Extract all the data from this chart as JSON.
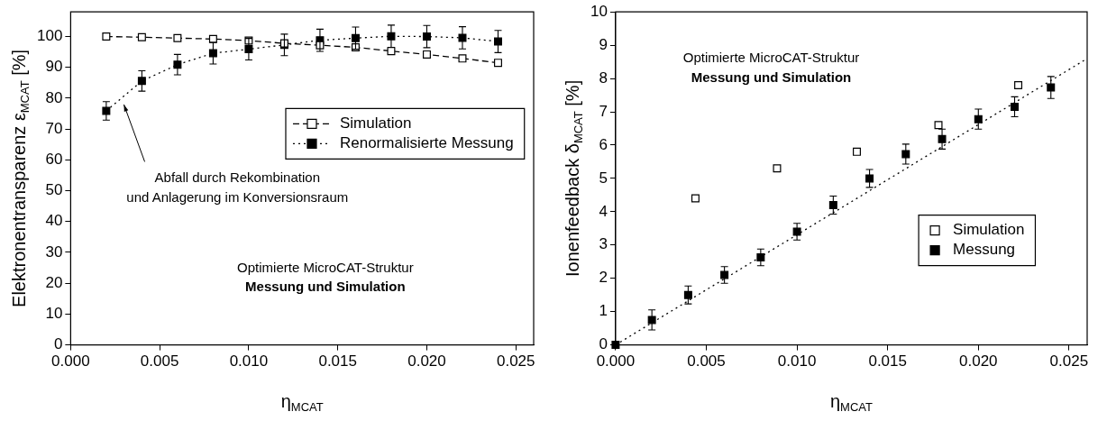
{
  "chart_data": [
    {
      "type": "line",
      "xlabel": "η$_{MCAT}$",
      "ylabel": "Elektronentransparenz ε$_{MCAT}$ [%]",
      "x": [
        0.002,
        0.004,
        0.006,
        0.008,
        0.01,
        0.012,
        0.014,
        0.016,
        0.018,
        0.02,
        0.022,
        0.024
      ],
      "series": [
        {
          "name": "Simulation",
          "color": "#000000",
          "line_style": "dashed",
          "marker": "square",
          "values": [
            100,
            99.8,
            99.5,
            99.2,
            98.7,
            97.8,
            97.2,
            96.5,
            95.3,
            94.2,
            92.9,
            91.5
          ]
        },
        {
          "name": "Renormalisierte Messung",
          "color": "#000000",
          "line_style": "dotted",
          "marker": "square",
          "values": [
            75.9,
            85.6,
            90.9,
            94.6,
            95.9,
            97.3,
            98.8,
            99.5,
            100.1,
            100,
            99.6,
            98.4
          ],
          "errors": [
            3,
            3.3,
            3.3,
            3.5,
            3.5,
            3.5,
            3.6,
            3.6,
            3.6,
            3.6,
            3.6,
            3.6
          ]
        }
      ],
      "xlim": [
        0,
        0.026
      ],
      "xticks": [
        {
          "value": 0,
          "label": "0.000"
        },
        {
          "value": 0.005,
          "label": "0.005"
        },
        {
          "value": 0.01,
          "label": "0.010"
        },
        {
          "value": 0.015,
          "label": "0.015"
        },
        {
          "value": 0.02,
          "label": "0.020"
        },
        {
          "value": 0.025,
          "label": "0.025"
        }
      ],
      "ylim": [
        0,
        108
      ],
      "yticks": [
        0,
        10,
        20,
        30,
        40,
        50,
        60,
        70,
        80,
        90,
        100
      ],
      "legend": "top right",
      "annotations": [
        "Abfall durch Rekombination\nund Anlagerung im Konversionsraum",
        "Optimierte MicroCAT-Struktur",
        "Messung und Simulation"
      ]
    },
    {
      "type": "scatter",
      "xlabel": "η$_{MCAT}$",
      "ylabel": "Ionenfeedback δ$_{MCAT}$ [%]",
      "series": [
        {
          "name": "Simulation",
          "color": "#000000",
          "marker": "square",
          "x": [
            0.0044,
            0.0089,
            0.0133,
            0.0178,
            0.0222
          ],
          "values": [
            4.4,
            5.3,
            5.8,
            6.6,
            7.8
          ]
        },
        {
          "name": "Messung",
          "color": "#000000",
          "marker": "square",
          "x": [
            0,
            0.002,
            0.004,
            0.006,
            0.008,
            0.01,
            0.012,
            0.014,
            0.016,
            0.018,
            0.02,
            0.022,
            0.024
          ],
          "values": [
            0,
            0.75,
            1.5,
            2.1,
            2.63,
            3.4,
            4.2,
            5.0,
            5.73,
            6.18,
            6.78,
            7.15,
            7.73
          ],
          "errors": [
            null,
            0.3,
            0.27,
            0.25,
            0.25,
            0.25,
            0.27,
            0.27,
            0.3,
            0.3,
            0.3,
            0.3,
            0.33
          ]
        },
        {
          "color": "#000000",
          "type": "line",
          "line_style": "dotted",
          "marker": "none",
          "x": [
            0,
            0.026
          ],
          "values": [
            0,
            8.6
          ]
        }
      ],
      "xlim": [
        0,
        0.026
      ],
      "xticks": [
        {
          "value": 0,
          "label": "0.000"
        },
        {
          "value": 0.005,
          "label": "0.005"
        },
        {
          "value": 0.01,
          "label": "0.010"
        },
        {
          "value": 0.015,
          "label": "0.015"
        },
        {
          "value": 0.02,
          "label": "0.020"
        },
        {
          "value": 0.025,
          "label": "0.025"
        }
      ],
      "ylim": [
        0,
        10
      ],
      "yticks": [
        0,
        1,
        2,
        3,
        4,
        5,
        6,
        7,
        8,
        9,
        10
      ],
      "legend": "right",
      "annotations": [
        "Optimierte MicroCAT-Struktur",
        "Messung und Simulation"
      ]
    }
  ]
}
